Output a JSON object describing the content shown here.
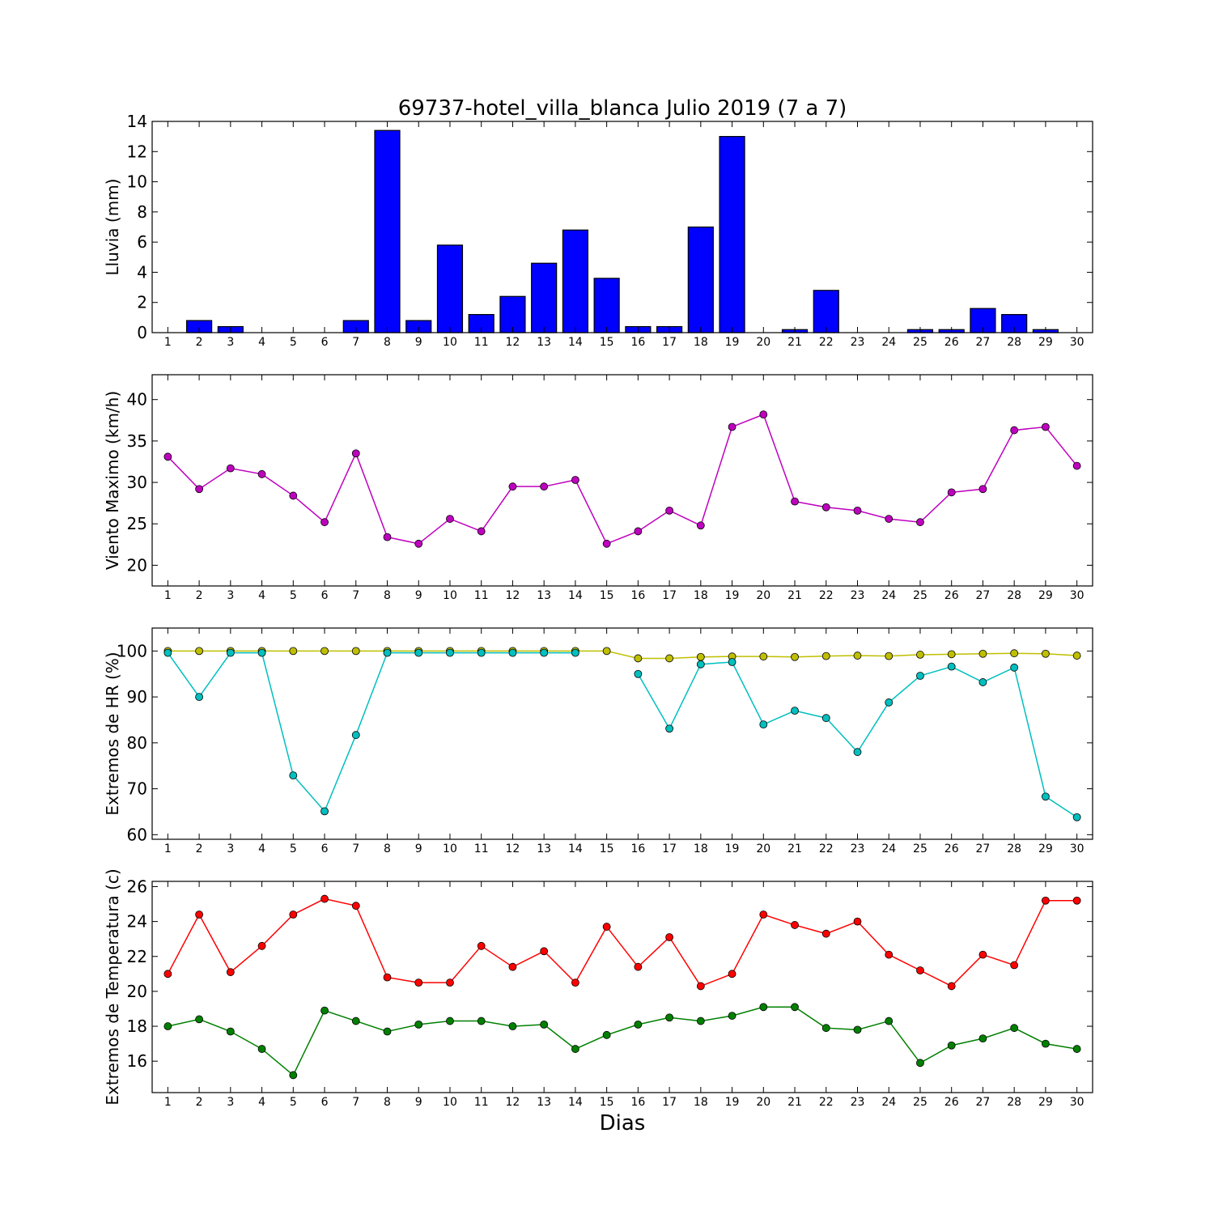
{
  "title": "69737-hotel_villa_blanca Julio 2019  (7 a 7)",
  "xlabel": "Dias",
  "chart_data": [
    {
      "type": "bar",
      "ylabel": "Lluvia (mm)",
      "ylim": [
        0,
        14
      ],
      "yticks": [
        0,
        2,
        4,
        6,
        8,
        10,
        12,
        14
      ],
      "x": [
        1,
        2,
        3,
        4,
        5,
        6,
        7,
        8,
        9,
        10,
        11,
        12,
        13,
        14,
        15,
        16,
        17,
        18,
        19,
        20,
        21,
        22,
        23,
        24,
        25,
        26,
        27,
        28,
        29,
        30
      ],
      "series": [
        {
          "color": "#0000ff",
          "values": [
            0,
            0.8,
            0.4,
            0,
            0,
            0,
            0.8,
            13.4,
            0.8,
            5.8,
            1.2,
            2.4,
            4.6,
            6.8,
            3.6,
            0.4,
            0.4,
            7,
            13,
            0,
            0.2,
            2.8,
            0,
            0,
            0.2,
            0.2,
            1.6,
            1.2,
            0.2,
            0
          ]
        }
      ]
    },
    {
      "type": "line",
      "ylabel": "Viento Maximo (km/h)",
      "ylim": [
        17.5,
        43
      ],
      "yticks": [
        20,
        25,
        30,
        35,
        40
      ],
      "x": [
        1,
        2,
        3,
        4,
        5,
        6,
        7,
        8,
        9,
        10,
        11,
        12,
        13,
        14,
        15,
        16,
        17,
        18,
        19,
        20,
        21,
        22,
        23,
        24,
        25,
        26,
        27,
        28,
        29,
        30
      ],
      "series": [
        {
          "color": "#bf00bf",
          "values": [
            33.1,
            29.2,
            31.7,
            31,
            28.4,
            25.2,
            33.5,
            23.4,
            22.6,
            25.6,
            24.1,
            29.5,
            29.5,
            30.3,
            22.6,
            24.1,
            26.6,
            24.8,
            36.7,
            38.2,
            27.7,
            27,
            26.6,
            25.6,
            25.2,
            28.8,
            29.2,
            36.3,
            36.7,
            32
          ]
        }
      ]
    },
    {
      "type": "line",
      "ylabel": "Extremos de HR (%)",
      "ylim": [
        59,
        105
      ],
      "yticks": [
        60,
        70,
        80,
        90,
        100
      ],
      "x": [
        1,
        2,
        3,
        4,
        5,
        6,
        7,
        8,
        9,
        10,
        11,
        12,
        13,
        14,
        15,
        16,
        17,
        18,
        19,
        20,
        21,
        22,
        23,
        24,
        25,
        26,
        27,
        28,
        29,
        30
      ],
      "series": [
        {
          "color": "#bfbf00",
          "values": [
            100,
            100,
            100,
            100,
            100,
            100,
            100,
            100,
            100,
            100,
            100,
            100,
            100,
            100,
            100,
            98.4,
            98.4,
            98.7,
            98.8,
            98.8,
            98.7,
            98.9,
            99,
            98.9,
            99.2,
            99.3,
            99.4,
            99.5,
            99.4,
            99
          ]
        },
        {
          "color": "#00bfbf",
          "values": [
            99.6,
            90,
            99.6,
            99.6,
            72.9,
            65.1,
            81.7,
            99.6,
            99.6,
            99.6,
            99.6,
            99.6,
            99.6,
            99.6,
            null,
            95,
            83.1,
            97.1,
            97.6,
            84,
            87,
            85.4,
            78,
            88.8,
            94.6,
            96.6,
            93.2,
            96.4,
            68.3,
            63.8
          ]
        }
      ]
    },
    {
      "type": "line",
      "ylabel": "Extremos de Temperatura (c)",
      "ylim": [
        14.2,
        26.3
      ],
      "yticks": [
        16,
        18,
        20,
        22,
        24,
        26
      ],
      "x": [
        1,
        2,
        3,
        4,
        5,
        6,
        7,
        8,
        9,
        10,
        11,
        12,
        13,
        14,
        15,
        16,
        17,
        18,
        19,
        20,
        21,
        22,
        23,
        24,
        25,
        26,
        27,
        28,
        29,
        30
      ],
      "series": [
        {
          "color": "#ff0000",
          "values": [
            21,
            24.4,
            21.1,
            22.6,
            24.4,
            25.3,
            24.9,
            20.8,
            20.5,
            20.5,
            22.6,
            21.4,
            22.3,
            20.5,
            23.7,
            21.4,
            23.1,
            20.3,
            21,
            24.4,
            23.8,
            23.3,
            24,
            22.1,
            21.2,
            20.3,
            22.1,
            21.5,
            25.2,
            25.2
          ]
        },
        {
          "color": "#008000",
          "values": [
            18,
            18.4,
            17.7,
            16.7,
            15.2,
            18.9,
            18.3,
            17.7,
            18.1,
            18.3,
            18.3,
            18,
            18.1,
            16.7,
            17.5,
            18.1,
            18.5,
            18.3,
            18.6,
            19.1,
            19.1,
            17.9,
            17.8,
            18.3,
            15.9,
            16.9,
            17.3,
            17.9,
            17,
            16.7
          ]
        }
      ]
    }
  ]
}
